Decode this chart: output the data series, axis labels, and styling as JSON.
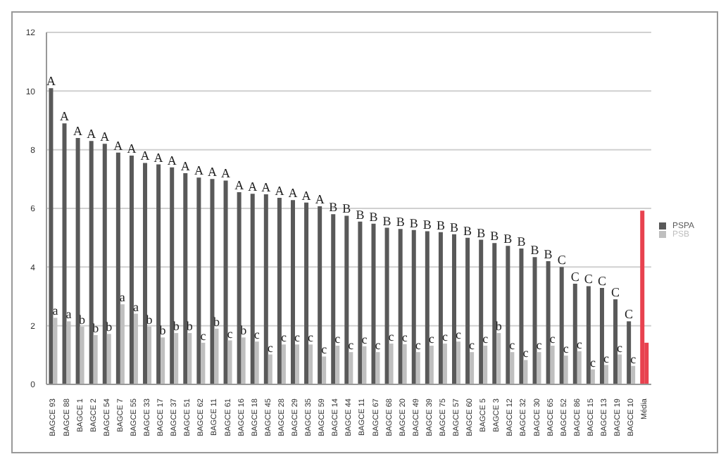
{
  "chart_data": {
    "type": "bar",
    "categories": [
      "BAGCE 93",
      "BAGCE 88",
      "BAGCE 1",
      "BAGCE 2",
      "BAGCE 54",
      "BAGCE 7",
      "BAGCE 55",
      "BAGCE 33",
      "BAGCE 17",
      "BAGCE 37",
      "BAGCE 51",
      "BAGCE 62",
      "BAGCE 11",
      "BAGCE 61",
      "BAGCE 16",
      "BAGCE 18",
      "BAGCE 45",
      "BAGCE 28",
      "BAGCE 29",
      "BAGCE 35",
      "BAGCE 59",
      "BAGCE 14",
      "BAGCE 44",
      "BAGCE 11",
      "BAGCE 67",
      "BAGCE 68",
      "BAGCE 20",
      "BAGCE 49",
      "BAGCE 39",
      "BAGCE 75",
      "BAGCE 57",
      "BAGCE 60",
      "BAGCE 5",
      "BAGCE 3",
      "BAGCE 12",
      "BAGCE 32",
      "BAGCE 30",
      "BAGCE 65",
      "BAGCE 52",
      "BAGCE 86",
      "BAGCE 15",
      "BAGCE 13",
      "BAGCE 19",
      "BAGCE 10",
      "Média"
    ],
    "series": [
      {
        "name": "PSPA",
        "color": "#595959",
        "colors": [
          "#595959",
          "#595959",
          "#595959",
          "#595959",
          "#595959",
          "#595959",
          "#595959",
          "#595959",
          "#595959",
          "#595959",
          "#595959",
          "#595959",
          "#595959",
          "#595959",
          "#595959",
          "#595959",
          "#595959",
          "#595959",
          "#595959",
          "#595959",
          "#595959",
          "#595959",
          "#595959",
          "#595959",
          "#595959",
          "#595959",
          "#595959",
          "#595959",
          "#595959",
          "#595959",
          "#595959",
          "#595959",
          "#595959",
          "#595959",
          "#595959",
          "#595959",
          "#595959",
          "#595959",
          "#595959",
          "#595959",
          "#595959",
          "#595959",
          "#595959",
          "#595959",
          "#e8424f"
        ],
        "values": [
          10.1,
          8.9,
          8.4,
          8.3,
          8.2,
          7.9,
          7.8,
          7.55,
          7.5,
          7.4,
          7.2,
          7.05,
          7.0,
          6.95,
          6.55,
          6.5,
          6.48,
          6.36,
          6.28,
          6.2,
          6.07,
          5.8,
          5.75,
          5.55,
          5.48,
          5.34,
          5.3,
          5.26,
          5.22,
          5.19,
          5.12,
          5.0,
          4.93,
          4.82,
          4.72,
          4.63,
          4.34,
          4.2,
          4.0,
          3.43,
          3.35,
          3.29,
          2.9,
          2.15,
          5.92
        ],
        "value_labels": [
          "A",
          "A",
          "A",
          "A",
          "A",
          "A",
          "A",
          "A",
          "A",
          "A",
          "A",
          "A",
          "A",
          "A",
          "A",
          "A",
          "A",
          "A",
          "A",
          "A",
          "A",
          "B",
          "B",
          "B",
          "B",
          "B",
          "B",
          "B",
          "B",
          "B",
          "B",
          "B",
          "B",
          "B",
          "B",
          "B",
          "B",
          "B",
          "C",
          "C",
          "C",
          "C",
          "C",
          "C",
          null
        ]
      },
      {
        "name": "PSB",
        "color": "#bfbfbf",
        "colors": [
          "#bfbfbf",
          "#bfbfbf",
          "#bfbfbf",
          "#bfbfbf",
          "#bfbfbf",
          "#bfbfbf",
          "#bfbfbf",
          "#bfbfbf",
          "#bfbfbf",
          "#bfbfbf",
          "#bfbfbf",
          "#bfbfbf",
          "#bfbfbf",
          "#bfbfbf",
          "#bfbfbf",
          "#bfbfbf",
          "#bfbfbf",
          "#bfbfbf",
          "#bfbfbf",
          "#bfbfbf",
          "#bfbfbf",
          "#bfbfbf",
          "#bfbfbf",
          "#bfbfbf",
          "#bfbfbf",
          "#bfbfbf",
          "#bfbfbf",
          "#bfbfbf",
          "#bfbfbf",
          "#bfbfbf",
          "#bfbfbf",
          "#bfbfbf",
          "#bfbfbf",
          "#bfbfbf",
          "#bfbfbf",
          "#bfbfbf",
          "#bfbfbf",
          "#bfbfbf",
          "#bfbfbf",
          "#bfbfbf",
          "#bfbfbf",
          "#bfbfbf",
          "#bfbfbf",
          "#bfbfbf",
          "#e8424f"
        ],
        "values": [
          2.27,
          2.15,
          1.97,
          1.68,
          1.72,
          2.73,
          2.41,
          1.97,
          1.6,
          1.75,
          1.75,
          1.42,
          1.9,
          1.5,
          1.6,
          1.46,
          1.02,
          1.36,
          1.36,
          1.36,
          0.95,
          1.32,
          1.1,
          1.3,
          1.1,
          1.39,
          1.37,
          1.1,
          1.32,
          1.39,
          1.46,
          1.1,
          1.32,
          1.75,
          1.1,
          0.83,
          1.1,
          1.32,
          0.98,
          1.13,
          0.51,
          0.66,
          1.02,
          0.63,
          1.42
        ],
        "value_labels": [
          "a",
          "a",
          "b",
          "b",
          "b",
          "a",
          "a",
          "b",
          "b",
          "b",
          "b",
          "c",
          "b",
          "c",
          "b",
          "c",
          "c",
          "c",
          "c",
          "c",
          "c",
          "c",
          "c",
          "c",
          "c",
          "c",
          "c",
          "c",
          "c",
          "c",
          "c",
          "c",
          "c",
          "b",
          "c",
          "c",
          "c",
          "c",
          "c",
          "c",
          "c",
          "c",
          "c",
          "c",
          null
        ]
      }
    ],
    "ylim": [
      0,
      12
    ],
    "yticks": [
      0,
      2,
      4,
      6,
      8,
      10,
      12
    ],
    "grid": "y",
    "legend": "right"
  }
}
